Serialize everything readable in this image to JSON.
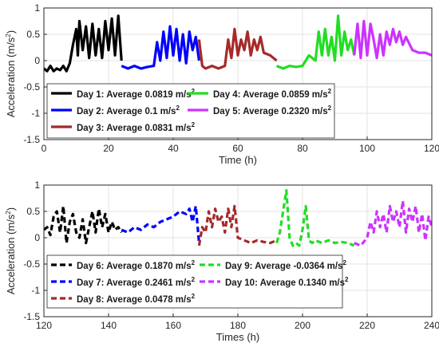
{
  "chart_data": [
    {
      "type": "line",
      "xlabel": "Time (h)",
      "ylabel": "Acceleration (m/s",
      "ylabel_sup": "2",
      "ylabel_close": ")",
      "xlim": [
        0,
        120
      ],
      "ylim": [
        -1.5,
        1
      ],
      "x_ticks": [
        0,
        20,
        40,
        60,
        80,
        100,
        120
      ],
      "y_ticks": [
        -1.5,
        -1,
        -0.5,
        0,
        0.5,
        1
      ],
      "y_tick_labels": [
        "-1.5",
        "-1",
        "-0.5",
        "0",
        "0.5",
        "1"
      ],
      "grid": true,
      "line_style": "solid",
      "legend_position": "bottom-left",
      "series": [
        {
          "name": "Day 1: Average 0.0819 m/s",
          "unit_sup": "2",
          "color": "#000000",
          "x_range": [
            0,
            24
          ],
          "points": [
            [
              0,
              -0.15
            ],
            [
              1,
              -0.2
            ],
            [
              2,
              -0.1
            ],
            [
              3,
              -0.2
            ],
            [
              4,
              -0.15
            ],
            [
              5,
              -0.18
            ],
            [
              6,
              -0.1
            ],
            [
              7,
              -0.2
            ],
            [
              8,
              -0.05
            ],
            [
              9,
              0.3
            ],
            [
              10,
              0.6
            ],
            [
              10.5,
              0.1
            ],
            [
              11,
              0.75
            ],
            [
              12,
              0.2
            ],
            [
              13,
              0.65
            ],
            [
              14,
              0.05
            ],
            [
              15,
              0.7
            ],
            [
              16,
              0.1
            ],
            [
              17,
              0.6
            ],
            [
              18,
              0.05
            ],
            [
              19,
              0.75
            ],
            [
              20,
              0.2
            ],
            [
              21,
              0.8
            ],
            [
              22,
              0.1
            ],
            [
              23,
              0.85
            ],
            [
              24,
              0.0
            ]
          ]
        },
        {
          "name": "Day 2: Average 0.1 m/s",
          "unit_sup": "2",
          "color": "#0000ff",
          "x_range": [
            24,
            48
          ],
          "points": [
            [
              24,
              -0.1
            ],
            [
              26,
              -0.15
            ],
            [
              28,
              -0.1
            ],
            [
              30,
              -0.15
            ],
            [
              32,
              -0.12
            ],
            [
              34,
              -0.1
            ],
            [
              35,
              0.35
            ],
            [
              36,
              0.0
            ],
            [
              37,
              0.55
            ],
            [
              38,
              0.05
            ],
            [
              39,
              0.65
            ],
            [
              40,
              0.1
            ],
            [
              41,
              0.6
            ],
            [
              42,
              0.0
            ],
            [
              43,
              0.5
            ],
            [
              44,
              -0.05
            ],
            [
              45,
              0.55
            ],
            [
              46,
              0.2
            ],
            [
              47,
              0.45
            ],
            [
              48,
              0.0
            ]
          ]
        },
        {
          "name": "Day 3: Average 0.0831 m/s",
          "unit_sup": "2",
          "color": "#a52a2a",
          "x_range": [
            48,
            72
          ],
          "points": [
            [
              48,
              0.4
            ],
            [
              49,
              -0.1
            ],
            [
              50,
              -0.15
            ],
            [
              52,
              -0.1
            ],
            [
              54,
              -0.15
            ],
            [
              56,
              -0.1
            ],
            [
              57,
              0.4
            ],
            [
              58,
              0.05
            ],
            [
              59,
              0.6
            ],
            [
              60,
              0.1
            ],
            [
              61,
              0.4
            ],
            [
              62,
              0.2
            ],
            [
              63,
              0.55
            ],
            [
              64,
              0.1
            ],
            [
              65,
              0.4
            ],
            [
              66,
              0.2
            ],
            [
              67,
              0.45
            ],
            [
              68,
              0.15
            ],
            [
              70,
              0.1
            ],
            [
              72,
              0.0
            ]
          ]
        },
        {
          "name": "Day 4: Average 0.0859 m/s",
          "unit_sup": "2",
          "color": "#22dd22",
          "x_range": [
            72,
            96
          ],
          "points": [
            [
              72,
              -0.1
            ],
            [
              74,
              -0.15
            ],
            [
              76,
              -0.1
            ],
            [
              78,
              -0.12
            ],
            [
              80,
              -0.1
            ],
            [
              82,
              0.1
            ],
            [
              84,
              0.0
            ],
            [
              85,
              0.55
            ],
            [
              86,
              0.1
            ],
            [
              87,
              0.6
            ],
            [
              88,
              0.1
            ],
            [
              89,
              0.45
            ],
            [
              90,
              0.0
            ],
            [
              91,
              0.85
            ],
            [
              92,
              0.1
            ],
            [
              93,
              0.55
            ],
            [
              94,
              0.2
            ],
            [
              95,
              0.4
            ],
            [
              96,
              0.1
            ]
          ]
        },
        {
          "name": "Day 5: Average 0.2320 m/s",
          "unit_sup": "2",
          "color": "#cc33ff",
          "x_range": [
            96,
            120
          ],
          "points": [
            [
              96,
              0.1
            ],
            [
              97,
              0.7
            ],
            [
              98,
              0.05
            ],
            [
              99,
              0.75
            ],
            [
              100,
              0.1
            ],
            [
              101,
              0.7
            ],
            [
              102,
              0.4
            ],
            [
              103,
              0.05
            ],
            [
              104,
              0.5
            ],
            [
              105,
              0.1
            ],
            [
              106,
              0.55
            ],
            [
              107,
              0.3
            ],
            [
              108,
              0.6
            ],
            [
              109,
              0.35
            ],
            [
              110,
              0.55
            ],
            [
              111,
              0.3
            ],
            [
              112,
              0.45
            ],
            [
              114,
              0.2
            ],
            [
              116,
              0.15
            ],
            [
              118,
              0.15
            ],
            [
              120,
              0.1
            ]
          ]
        }
      ]
    },
    {
      "type": "line",
      "xlabel": "Times (h)",
      "ylabel": "Acceleration (m/s",
      "ylabel_sup": "2",
      "ylabel_close": ")",
      "xlim": [
        120,
        240
      ],
      "ylim": [
        -1.5,
        1
      ],
      "x_ticks": [
        120,
        140,
        160,
        180,
        200,
        220,
        240
      ],
      "y_ticks": [
        -1.5,
        -1,
        -0.5,
        0,
        0.5,
        1
      ],
      "y_tick_labels": [
        "-1.5",
        "-1",
        "-0.5",
        "0",
        "0.5",
        "1"
      ],
      "grid": true,
      "line_style": "dashed",
      "legend_position": "bottom-left",
      "series": [
        {
          "name": "Day 6: Average 0.1870 m/s",
          "unit_sup": "2",
          "color": "#000000",
          "x_range": [
            120,
            144
          ],
          "points": [
            [
              120,
              0.15
            ],
            [
              121,
              0.2
            ],
            [
              122,
              0.05
            ],
            [
              123,
              0.4
            ],
            [
              124,
              0.5
            ],
            [
              125,
              0.1
            ],
            [
              126,
              0.6
            ],
            [
              127,
              -0.1
            ],
            [
              128,
              0.3
            ],
            [
              129,
              0.45
            ],
            [
              130,
              0.1
            ],
            [
              131,
              0.0
            ],
            [
              132,
              0.35
            ],
            [
              133,
              -0.1
            ],
            [
              134,
              0.2
            ],
            [
              135,
              0.5
            ],
            [
              136,
              0.1
            ],
            [
              137,
              0.55
            ],
            [
              138,
              0.2
            ],
            [
              139,
              0.45
            ],
            [
              140,
              0.1
            ],
            [
              141,
              0.3
            ],
            [
              142,
              0.15
            ],
            [
              143,
              0.2
            ],
            [
              144,
              0.1
            ]
          ]
        },
        {
          "name": "Day 7: Average 0.2461 m/s",
          "unit_sup": "2",
          "color": "#0000ff",
          "x_range": [
            144,
            168
          ],
          "points": [
            [
              144,
              0.15
            ],
            [
              146,
              0.1
            ],
            [
              148,
              0.2
            ],
            [
              150,
              0.15
            ],
            [
              152,
              0.25
            ],
            [
              154,
              0.2
            ],
            [
              156,
              0.3
            ],
            [
              158,
              0.35
            ],
            [
              160,
              0.4
            ],
            [
              162,
              0.5
            ],
            [
              164,
              0.45
            ],
            [
              165,
              0.55
            ],
            [
              166,
              0.3
            ],
            [
              167,
              0.6
            ],
            [
              168,
              -0.1
            ]
          ]
        },
        {
          "name": "Day 8: Average 0.0478 m/s",
          "unit_sup": "2",
          "color": "#a52a2a",
          "x_range": [
            168,
            192
          ],
          "points": [
            [
              168,
              -0.15
            ],
            [
              169,
              0.2
            ],
            [
              170,
              0.1
            ],
            [
              171,
              0.5
            ],
            [
              172,
              0.2
            ],
            [
              173,
              0.55
            ],
            [
              174,
              0.3
            ],
            [
              175,
              0.4
            ],
            [
              176,
              0.1
            ],
            [
              177,
              0.55
            ],
            [
              178,
              0.2
            ],
            [
              179,
              0.6
            ],
            [
              180,
              0.0
            ],
            [
              182,
              -0.05
            ],
            [
              184,
              -0.1
            ],
            [
              186,
              -0.05
            ],
            [
              188,
              -0.08
            ],
            [
              190,
              -0.1
            ],
            [
              192,
              -0.05
            ]
          ]
        },
        {
          "name": "Day 9: Average -0.0364 m/s",
          "unit_sup": "2",
          "color": "#22dd22",
          "x_range": [
            192,
            216
          ],
          "points": [
            [
              192,
              -0.1
            ],
            [
              193,
              0.1
            ],
            [
              194,
              0.5
            ],
            [
              195,
              0.9
            ],
            [
              196,
              0.0
            ],
            [
              197,
              -0.15
            ],
            [
              198,
              -0.1
            ],
            [
              199,
              -0.15
            ],
            [
              200,
              0.15
            ],
            [
              201,
              0.6
            ],
            [
              202,
              -0.05
            ],
            [
              203,
              -0.1
            ],
            [
              204,
              -0.05
            ],
            [
              206,
              -0.1
            ],
            [
              208,
              -0.05
            ],
            [
              210,
              -0.1
            ],
            [
              212,
              -0.08
            ],
            [
              214,
              -0.1
            ],
            [
              216,
              -0.15
            ]
          ]
        },
        {
          "name": "Day 10: Average 0.1340 m/s",
          "unit_sup": "2",
          "color": "#cc33ff",
          "x_range": [
            216,
            240
          ],
          "points": [
            [
              216,
              -0.1
            ],
            [
              218,
              -0.15
            ],
            [
              220,
              0.0
            ],
            [
              221,
              0.3
            ],
            [
              222,
              0.1
            ],
            [
              223,
              0.5
            ],
            [
              224,
              0.2
            ],
            [
              225,
              0.45
            ],
            [
              226,
              0.1
            ],
            [
              227,
              0.6
            ],
            [
              228,
              0.3
            ],
            [
              229,
              0.5
            ],
            [
              230,
              0.2
            ],
            [
              231,
              0.7
            ],
            [
              232,
              0.1
            ],
            [
              233,
              0.55
            ],
            [
              234,
              0.3
            ],
            [
              235,
              0.6
            ],
            [
              236,
              0.1
            ],
            [
              237,
              0.45
            ],
            [
              238,
              -0.05
            ],
            [
              239,
              0.4
            ],
            [
              240,
              0.2
            ]
          ]
        }
      ]
    }
  ]
}
